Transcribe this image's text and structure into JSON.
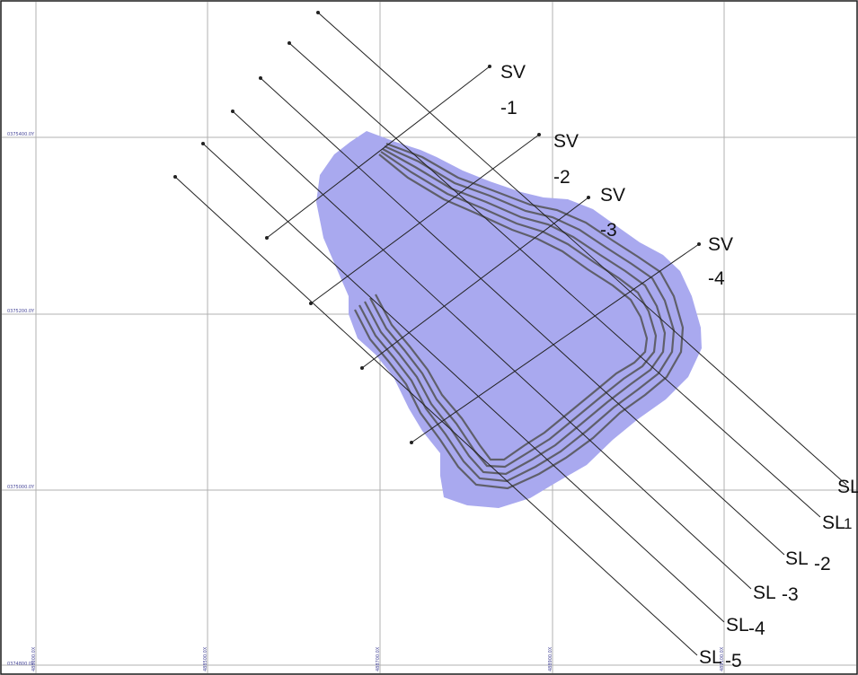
{
  "section_lines": [
    {
      "line1": "SL",
      "line2": ""
    },
    {
      "line1": "SL",
      "line2": "1"
    },
    {
      "line1": "SL",
      "line2": "-2"
    },
    {
      "line1": "SL",
      "line2": "-3"
    },
    {
      "line1": "SL",
      "line2": "-4"
    },
    {
      "line1": "SL",
      "line2": "-5"
    }
  ],
  "vertical_sections": [
    {
      "line1": "SV",
      "line2": "-1"
    },
    {
      "line1": "SV",
      "line2": "-2"
    },
    {
      "line1": "SV",
      "line2": "-3"
    },
    {
      "line1": "SV",
      "line2": "-4"
    }
  ],
  "coordinates": {
    "northings": [
      "0375400.0Y",
      "0375200.0Y",
      "0375000.0Y",
      "0374800.0Y"
    ],
    "eastings": [
      "488300.0X",
      "488500.0X",
      "488700.0X",
      "488900.0X",
      "489100.0X"
    ]
  },
  "colors": {
    "pit_fill": "#a9a9ef",
    "bench_lines": "#5f5f6a",
    "grid": "#b0b0b0",
    "section_lines": "#222222"
  }
}
